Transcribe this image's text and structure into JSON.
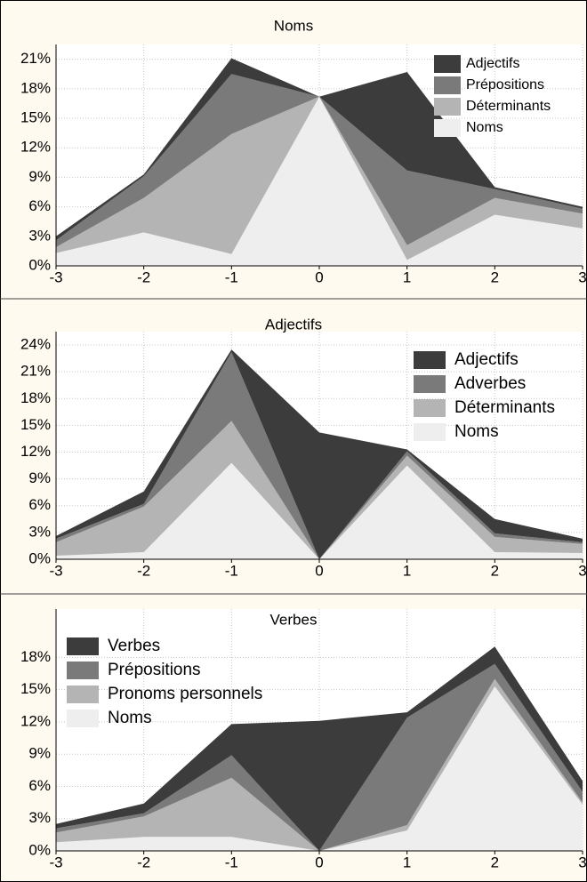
{
  "chart_data": [
    {
      "type": "stacked_area",
      "title": "Noms",
      "x": [
        -3,
        -2,
        -1,
        0,
        1,
        2,
        3
      ],
      "xlim": [
        -3,
        3
      ],
      "xticks": [
        -3,
        -2,
        -1,
        0,
        1,
        2,
        3
      ],
      "ylim": [
        0,
        22.5
      ],
      "yticks": [
        {
          "value": 0,
          "label": "0%"
        },
        {
          "value": 3,
          "label": "3%"
        },
        {
          "value": 6,
          "label": "6%"
        },
        {
          "value": 9,
          "label": "9%"
        },
        {
          "value": 12,
          "label": "12%"
        },
        {
          "value": 15,
          "label": "15%"
        },
        {
          "value": 18,
          "label": "18%"
        },
        {
          "value": 21,
          "label": "21%"
        }
      ],
      "grid": true,
      "legend_position": "upper right",
      "series": [
        {
          "name": "Adjectifs",
          "color": "#3c3c3c",
          "values": [
            0.4,
            0.2,
            1.6,
            0,
            10.0,
            0.2,
            0.2
          ]
        },
        {
          "name": "Prépositions",
          "color": "#7a7a7a",
          "values": [
            0.7,
            2.2,
            6.1,
            0,
            7.6,
            0.9,
            0.5
          ]
        },
        {
          "name": "Déterminants",
          "color": "#b4b4b4",
          "values": [
            0.6,
            3.5,
            12.2,
            0,
            1.5,
            1.7,
            1.5
          ]
        },
        {
          "name": "Noms",
          "color": "#eeeeee",
          "values": [
            1.3,
            3.4,
            1.2,
            17.2,
            0.6,
            5.2,
            3.8
          ]
        }
      ]
    },
    {
      "type": "stacked_area",
      "title": "Adjectifs",
      "x": [
        -3,
        -2,
        -1,
        0,
        1,
        2,
        3
      ],
      "xlim": [
        -3,
        3
      ],
      "xticks": [
        -3,
        -2,
        -1,
        0,
        1,
        2,
        3
      ],
      "ylim": [
        0,
        25.5
      ],
      "yticks": [
        {
          "value": 0,
          "label": "0%"
        },
        {
          "value": 3,
          "label": "3%"
        },
        {
          "value": 6,
          "label": "6%"
        },
        {
          "value": 9,
          "label": "9%"
        },
        {
          "value": 12,
          "label": "12%"
        },
        {
          "value": 15,
          "label": "15%"
        },
        {
          "value": 18,
          "label": "18%"
        },
        {
          "value": 21,
          "label": "21%"
        },
        {
          "value": 24,
          "label": "24%"
        }
      ],
      "grid": true,
      "legend_position": "upper right",
      "series": [
        {
          "name": "Adjectifs",
          "color": "#3c3c3c",
          "values": [
            0.3,
            1.4,
            0.3,
            14.2,
            0.2,
            1.6,
            0.4
          ]
        },
        {
          "name": "Adverbes",
          "color": "#7a7a7a",
          "values": [
            0.4,
            0.3,
            7.7,
            0,
            0.5,
            0.4,
            0.2
          ]
        },
        {
          "name": "Déterminants",
          "color": "#b4b4b4",
          "values": [
            1.5,
            5.1,
            4.7,
            0,
            1.1,
            1.7,
            1.0
          ]
        },
        {
          "name": "Noms",
          "color": "#eeeeee",
          "values": [
            0.4,
            0.8,
            10.8,
            0,
            10.5,
            0.8,
            0.7
          ]
        }
      ]
    },
    {
      "type": "stacked_area",
      "title": "Verbes",
      "x": [
        -3,
        -2,
        -1,
        0,
        1,
        2,
        3
      ],
      "xlim": [
        -3,
        3
      ],
      "xticks": [
        -3,
        -2,
        -1,
        0,
        1,
        2,
        3
      ],
      "ylim": [
        0,
        22.5
      ],
      "yticks": [
        {
          "value": 0,
          "label": "0%"
        },
        {
          "value": 3,
          "label": "3%"
        },
        {
          "value": 6,
          "label": "6%"
        },
        {
          "value": 9,
          "label": "9%"
        },
        {
          "value": 12,
          "label": "12%"
        },
        {
          "value": 15,
          "label": "15%"
        },
        {
          "value": 18,
          "label": "18%"
        }
      ],
      "grid": true,
      "legend_position": "upper left",
      "series": [
        {
          "name": "Verbes",
          "color": "#3c3c3c",
          "values": [
            0.4,
            0.9,
            2.9,
            12.1,
            0.5,
            1.6,
            1.0
          ]
        },
        {
          "name": "Prépositions",
          "color": "#7a7a7a",
          "values": [
            0.4,
            0.3,
            2.1,
            0,
            10.0,
            1.4,
            1.0
          ]
        },
        {
          "name": "Pronoms personnels",
          "color": "#b4b4b4",
          "values": [
            0.9,
            1.9,
            5.5,
            0,
            0.5,
            0.7,
            0.2
          ]
        },
        {
          "name": "Noms",
          "color": "#eeeeee",
          "values": [
            0.8,
            1.3,
            1.3,
            0,
            1.9,
            15.3,
            4.3
          ]
        }
      ]
    }
  ]
}
